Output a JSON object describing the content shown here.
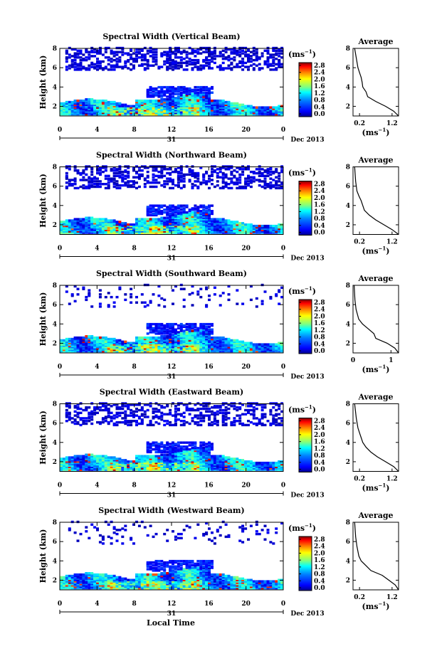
{
  "x_axis_title": "Local Time",
  "colorbar": {
    "unit_main": "(ms",
    "unit_sup": "−1",
    "ticks": [
      "2.8",
      "2.4",
      "2.0",
      "1.6",
      "1.2",
      "0.8",
      "0.4",
      "0.0"
    ]
  },
  "avg_title": "Average",
  "avg_unit_main": "(ms",
  "avg_unit_sup": "−1",
  "height_label": "Height (km)",
  "x_ticks": [
    "0",
    "4",
    "8",
    "12",
    "16",
    "20",
    "0"
  ],
  "day_label": "31",
  "month_label": "Dec 2013",
  "height_ticks": [
    "8",
    "6",
    "4",
    "2"
  ],
  "avg_y_ticks": [
    "8",
    "6",
    "4",
    "2"
  ],
  "chart_data": [
    {
      "type": "heatmap",
      "title": "Spectral Width (Vertical Beam)",
      "xlabel": "",
      "ylabel": "Height (km)",
      "xlim": [
        0,
        24
      ],
      "ylim": [
        1,
        8
      ],
      "clim": [
        0,
        2.8
      ],
      "avg_profile": {
        "xlabel": "(ms−1)",
        "xticks": [
          "0.2",
          "1.2"
        ],
        "xlim": [
          0,
          1.4
        ],
        "ylim": [
          1,
          8
        ],
        "x": [
          1.4,
          1.25,
          1.0,
          0.7,
          0.45,
          0.4,
          0.3,
          0.28,
          0.25,
          0.2,
          0.15,
          0.1,
          0.05
        ],
        "y": [
          1.0,
          1.5,
          2.0,
          2.5,
          3.0,
          3.5,
          4.0,
          4.5,
          5.0,
          5.5,
          6.0,
          7.0,
          8.0
        ]
      }
    },
    {
      "type": "heatmap",
      "title": "Spectral Width (Northward Beam)",
      "xlabel": "",
      "ylabel": "Height (km)",
      "xlim": [
        0,
        24
      ],
      "ylim": [
        1,
        8
      ],
      "clim": [
        0,
        2.8
      ],
      "avg_profile": {
        "xlabel": "(ms−1)",
        "xticks": [
          "0.2",
          "1.2"
        ],
        "xlim": [
          0,
          1.4
        ],
        "ylim": [
          1,
          8
        ],
        "x": [
          1.4,
          1.2,
          0.95,
          0.7,
          0.5,
          0.35,
          0.3,
          0.25,
          0.18,
          0.12,
          0.08,
          0.05
        ],
        "y": [
          1.0,
          1.5,
          2.0,
          2.5,
          3.0,
          3.5,
          4.0,
          4.5,
          5.0,
          5.5,
          6.5,
          8.0
        ]
      }
    },
    {
      "type": "heatmap",
      "title": "Spectral Width (Southward Beam)",
      "xlabel": "",
      "ylabel": "Height (km)",
      "xlim": [
        0,
        24
      ],
      "ylim": [
        1,
        8
      ],
      "clim": [
        0,
        2.8
      ],
      "avg_profile": {
        "xlabel": "(ms−1)",
        "xticks": [
          "0",
          "1"
        ],
        "xlim": [
          0,
          1.2
        ],
        "ylim": [
          1,
          8
        ],
        "x": [
          1.2,
          1.1,
          0.9,
          0.6,
          0.55,
          0.4,
          0.25,
          0.15,
          0.08,
          0.05,
          0.03
        ],
        "y": [
          1.0,
          1.5,
          2.0,
          2.5,
          3.0,
          3.5,
          4.0,
          4.5,
          5.5,
          6.5,
          8.0
        ]
      }
    },
    {
      "type": "heatmap",
      "title": "Spectral Width (Eastward Beam)",
      "xlabel": "",
      "ylabel": "Height (km)",
      "xlim": [
        0,
        24
      ],
      "ylim": [
        1,
        8
      ],
      "clim": [
        0,
        2.8
      ],
      "avg_profile": {
        "xlabel": "(ms−1)",
        "xticks": [
          "0.2",
          "1.2"
        ],
        "xlim": [
          0,
          1.4
        ],
        "ylim": [
          1,
          8
        ],
        "x": [
          1.4,
          1.25,
          1.0,
          0.75,
          0.55,
          0.4,
          0.3,
          0.25,
          0.2,
          0.15,
          0.1,
          0.05
        ],
        "y": [
          1.0,
          1.5,
          2.0,
          2.5,
          3.0,
          3.5,
          4.0,
          4.5,
          5.0,
          5.5,
          6.5,
          8.0
        ]
      }
    },
    {
      "type": "heatmap",
      "title": "Spectral Width (Westward Beam)",
      "xlabel": "Local Time",
      "ylabel": "Height (km)",
      "xlim": [
        0,
        24
      ],
      "ylim": [
        1,
        8
      ],
      "clim": [
        0,
        2.8
      ],
      "avg_profile": {
        "xlabel": "(ms−1)",
        "xticks": [
          "0.2",
          "1.2"
        ],
        "xlim": [
          0,
          1.4
        ],
        "ylim": [
          1,
          8
        ],
        "x": [
          1.4,
          1.3,
          1.1,
          0.9,
          0.55,
          0.4,
          0.25,
          0.18,
          0.12,
          0.08,
          0.05
        ],
        "y": [
          1.0,
          1.5,
          2.0,
          2.5,
          3.0,
          3.5,
          4.0,
          4.5,
          5.5,
          6.5,
          8.0
        ]
      }
    }
  ],
  "colors": {
    "jet": [
      "#00008f",
      "#0000ff",
      "#0080ff",
      "#00ffff",
      "#80ff80",
      "#ffff00",
      "#ff8000",
      "#ff0000",
      "#800000"
    ]
  }
}
